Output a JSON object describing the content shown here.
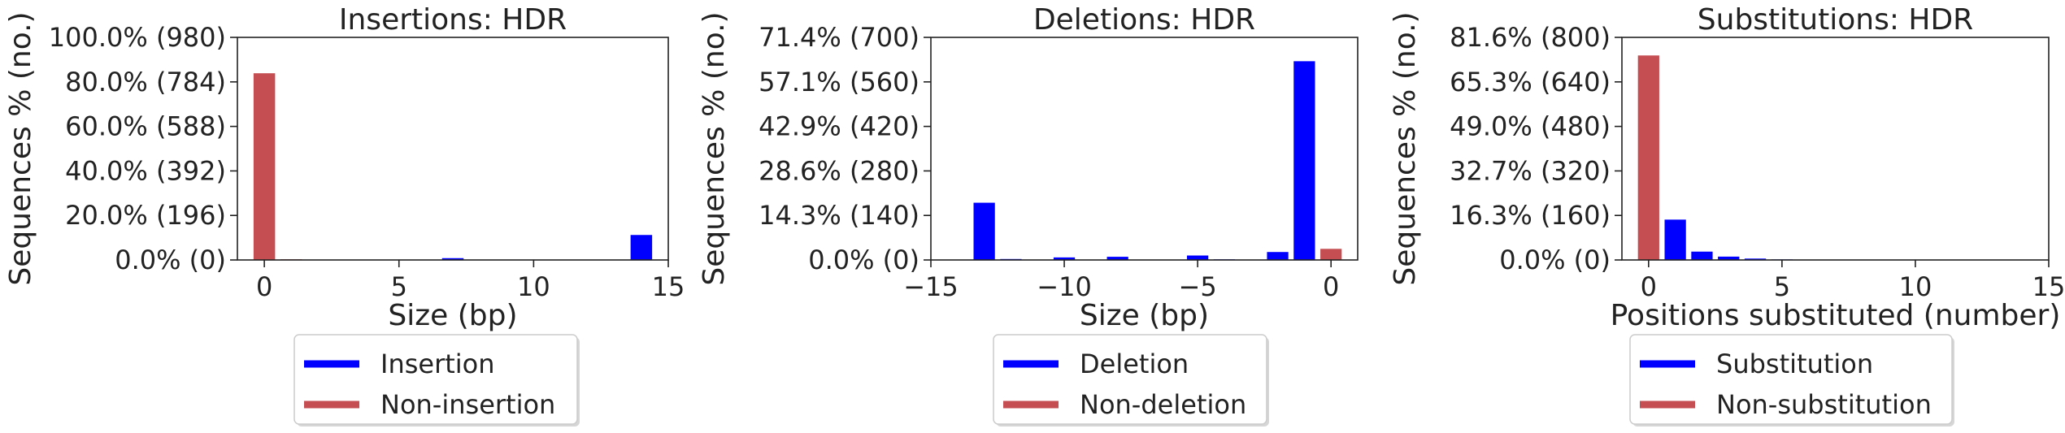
{
  "chart_data": [
    {
      "type": "bar",
      "title": "Insertions: HDR",
      "xlabel": "Size (bp)",
      "ylabel": "Sequences % (no.)",
      "xlim": [
        -1,
        15
      ],
      "ylim": [
        0,
        980
      ],
      "xticks": [
        0,
        5,
        10,
        15
      ],
      "xtick_labels": [
        "0",
        "5",
        "10",
        "15"
      ],
      "yticks": [
        0,
        196,
        392,
        588,
        784,
        980
      ],
      "ytick_labels": [
        "0.0% (0)",
        "20.0% (196)",
        "40.0% (392)",
        "60.0% (588)",
        "80.0% (784)",
        "100.0% (980)"
      ],
      "grid": false,
      "legend_placement": "below",
      "series": [
        {
          "name": "Insertion",
          "color": "#0000ff",
          "points": [
            [
              7,
              8
            ],
            [
              14,
              110
            ]
          ]
        },
        {
          "name": "Non-insertion",
          "color": "#c44e52",
          "points": [
            [
              0,
              822
            ],
            [
              1,
              3
            ]
          ]
        }
      ]
    },
    {
      "type": "bar",
      "title": "Deletions: HDR",
      "xlabel": "Size (bp)",
      "ylabel": "Sequences % (no.)",
      "xlim": [
        -15,
        1
      ],
      "ylim": [
        0,
        700
      ],
      "xticks": [
        -15,
        -10,
        -5,
        0
      ],
      "xtick_labels": [
        "−15",
        "−10",
        "−5",
        "0"
      ],
      "yticks": [
        0,
        140,
        280,
        420,
        560,
        700
      ],
      "ytick_labels": [
        "0.0% (0)",
        "14.3% (140)",
        "28.6% (280)",
        "42.9% (420)",
        "57.1% (560)",
        "71.4% (700)"
      ],
      "grid": false,
      "legend_placement": "below",
      "series": [
        {
          "name": "Deletion",
          "color": "#0000ff",
          "points": [
            [
              -13,
              180
            ],
            [
              -12,
              3
            ],
            [
              -10,
              8
            ],
            [
              -8,
              10
            ],
            [
              -5,
              14
            ],
            [
              -4,
              2
            ],
            [
              -2,
              25
            ],
            [
              -1,
              625
            ]
          ]
        },
        {
          "name": "Non-deletion",
          "color": "#c44e52",
          "points": [
            [
              0,
              35
            ]
          ]
        }
      ]
    },
    {
      "type": "bar",
      "title": "Substitutions: HDR",
      "xlabel": "Positions substituted (number)",
      "ylabel": "Sequences % (no.)",
      "xlim": [
        -1,
        15
      ],
      "ylim": [
        0,
        800
      ],
      "xticks": [
        0,
        5,
        10,
        15
      ],
      "xtick_labels": [
        "0",
        "5",
        "10",
        "15"
      ],
      "yticks": [
        0,
        160,
        320,
        480,
        640,
        800
      ],
      "ytick_labels": [
        "0.0% (0)",
        "16.3% (160)",
        "32.7% (320)",
        "49.0% (480)",
        "65.3% (640)",
        "81.6% (800)"
      ],
      "grid": false,
      "legend_placement": "below",
      "series": [
        {
          "name": "Substitution",
          "color": "#0000ff",
          "points": [
            [
              1,
              145
            ],
            [
              2,
              30
            ],
            [
              3,
              12
            ],
            [
              4,
              5
            ],
            [
              5,
              2
            ]
          ]
        },
        {
          "name": "Non-substitution",
          "color": "#c44e52",
          "points": [
            [
              0,
              735
            ]
          ]
        }
      ]
    }
  ]
}
